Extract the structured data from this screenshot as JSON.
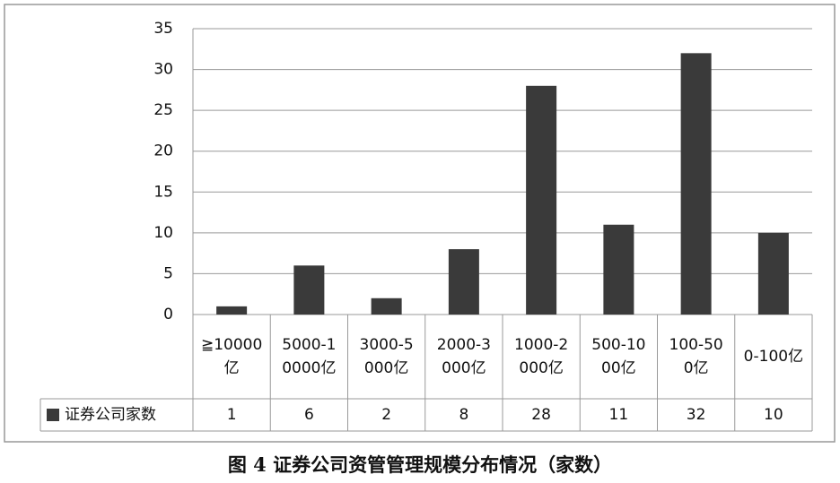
{
  "chart_data": {
    "type": "bar",
    "title": "图 4 证券公司资管管理规模分布情况（家数）",
    "categories": [
      "≧10000亿",
      "5000-10000亿",
      "3000-5000亿",
      "2000-3000亿",
      "1000-2000亿",
      "500-1000亿",
      "100-500亿",
      "0-100亿"
    ],
    "series": [
      {
        "name": "证券公司家数",
        "color": "#3a3a3a",
        "values": [
          1,
          6,
          2,
          8,
          28,
          11,
          32,
          10
        ]
      }
    ],
    "ylim": [
      0,
      35
    ],
    "yticks": [
      0,
      5,
      10,
      15,
      20,
      25,
      30,
      35
    ],
    "grid": true
  }
}
